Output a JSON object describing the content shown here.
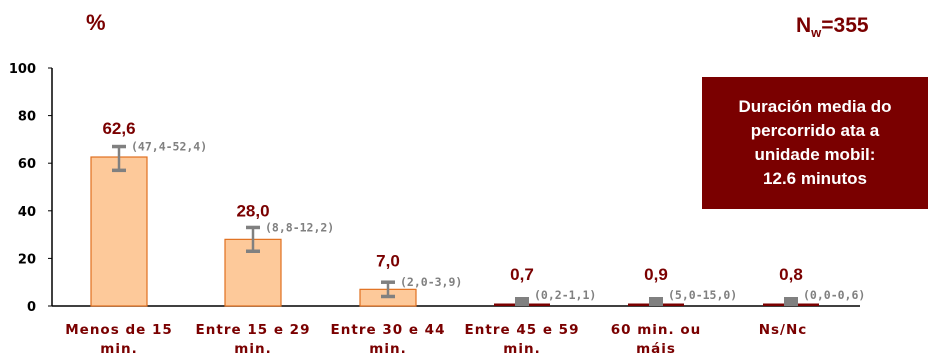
{
  "header": {
    "unit": "%",
    "sample_prefix": "N",
    "sample_sub": "w",
    "sample_value": "=355"
  },
  "info_box": {
    "text": "Duración media do\npercorrido ata a\nunidade mobil:\n12.6 minutos"
  },
  "colors": {
    "bar_fill": "#fdc99a",
    "bar_stroke": "#e07020",
    "dark_red": "#7a0000",
    "error_bar": "#808080",
    "ci_text": "#808080"
  },
  "chart_data": {
    "type": "bar",
    "ylim": [
      0,
      100
    ],
    "yticks": [
      "0",
      "20",
      "40",
      "60",
      "80",
      "100"
    ],
    "categories": [
      [
        "Menos de 15",
        "min."
      ],
      [
        "Entre 15 e 29",
        "min."
      ],
      [
        "Entre 30 e 44",
        "min."
      ],
      [
        "Entre 45 e 59",
        "min."
      ],
      [
        "60 min. ou",
        "máis"
      ],
      [
        "Ns/Nc",
        ""
      ]
    ],
    "values": [
      62.6,
      28.0,
      7.0,
      0.7,
      0.9,
      0.8
    ],
    "value_labels": [
      "62,6",
      "28,0",
      "7,0",
      "0,7",
      "0,9",
      "0,8"
    ],
    "ci_labels": [
      "(47,4-52,4)",
      "(8,8-12,2)",
      "(2,0-3,9)",
      "(0,2-1,1)",
      "(5,0-15,0)",
      "(0,0-0,6)"
    ],
    "error_bars": [
      [
        57,
        67
      ],
      [
        23,
        33
      ],
      [
        4,
        10
      ],
      [
        0.2,
        1.6
      ],
      [
        0.2,
        1.9
      ],
      [
        0.2,
        1.6
      ]
    ]
  }
}
